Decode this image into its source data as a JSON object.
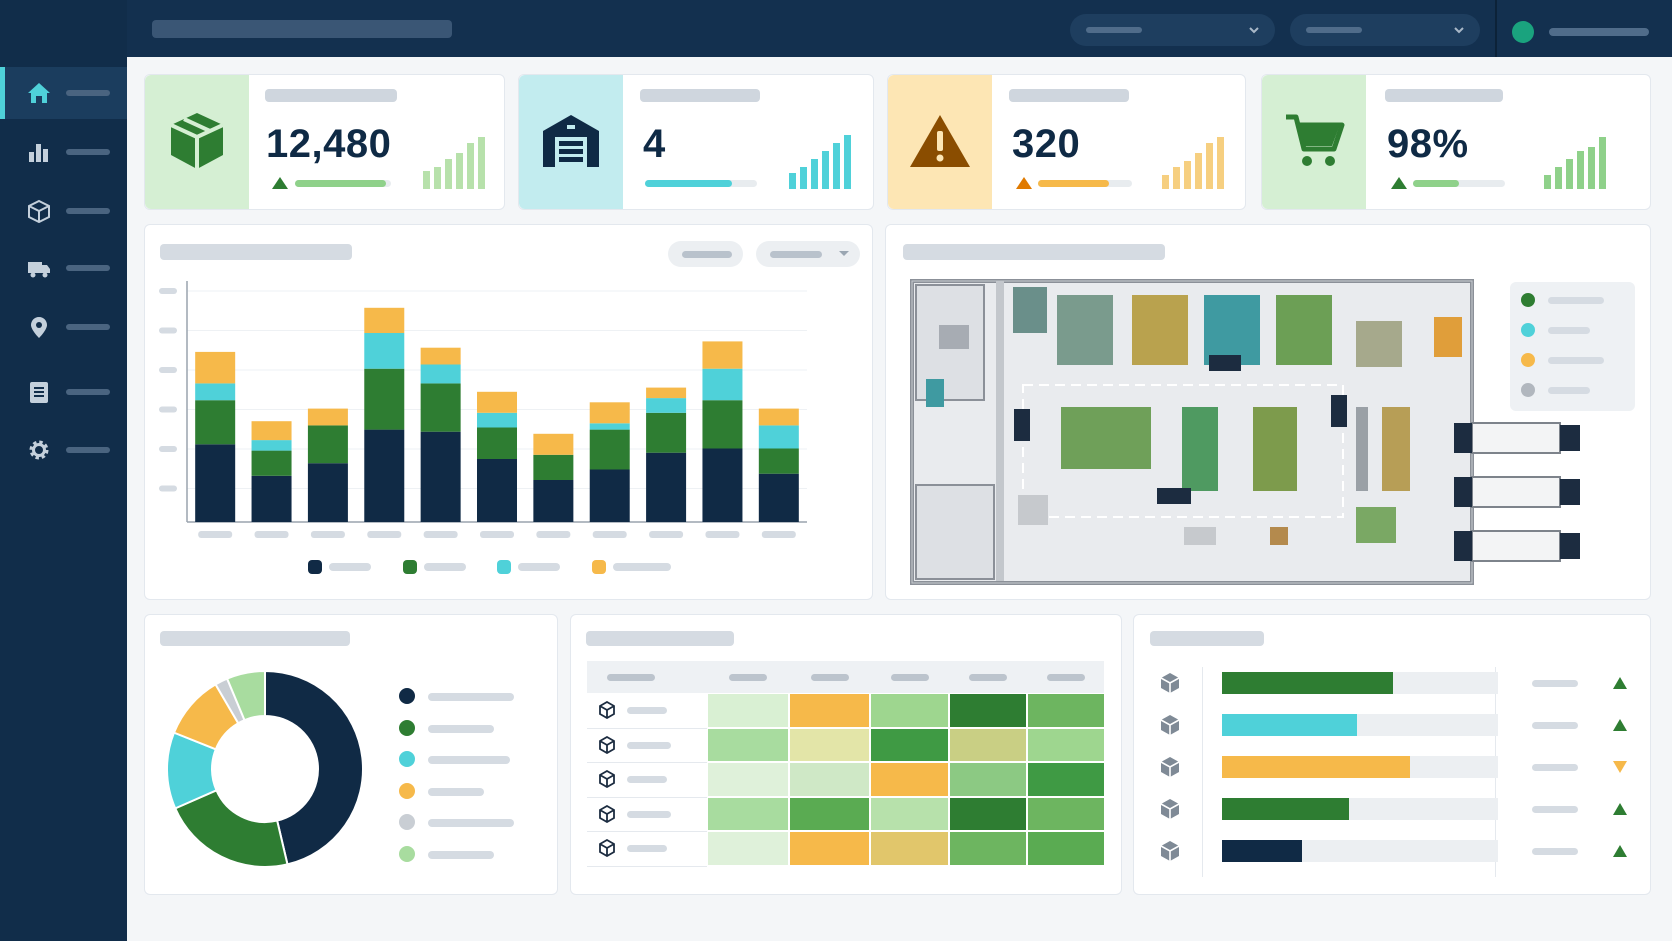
{
  "app": {
    "accent": "#4fd1d9",
    "sidebar_bg": "#112d4a",
    "topbar_bg": "#13304f"
  },
  "sidebar": {
    "items": [
      {
        "icon": "home-icon",
        "active": true
      },
      {
        "icon": "bar-chart-icon",
        "active": false
      },
      {
        "icon": "box-icon",
        "active": false
      },
      {
        "icon": "truck-icon",
        "active": false
      },
      {
        "icon": "location-pin-icon",
        "active": false
      },
      {
        "icon": "document-icon",
        "active": false
      },
      {
        "icon": "gear-icon",
        "active": false
      }
    ]
  },
  "kpis": [
    {
      "icon": "package-icon",
      "value": "12,480",
      "trend": "up",
      "progress": 0.95,
      "color": "#2e7d32",
      "bg": "#d5efd3",
      "bar_color": "#8fd18a"
    },
    {
      "icon": "warehouse-icon",
      "value": "4",
      "trend": "none",
      "progress": 0.78,
      "color": "#0f2a45",
      "bg": "#c2ecef",
      "bar_color": "#4fd1d9"
    },
    {
      "icon": "warning-icon",
      "value": "320",
      "trend": "up",
      "progress": 0.75,
      "color": "#8a4d00",
      "bg": "#fde6b4",
      "bar_color": "#f6b94a"
    },
    {
      "icon": "cart-icon",
      "value": "98%",
      "trend": "up",
      "progress": 0.5,
      "color": "#2e7d32",
      "bg": "#d5efd3",
      "bar_color": "#8fd18a"
    }
  ],
  "stacked_chart": {
    "colors": [
      "#102a45",
      "#2e7d32",
      "#4fd1d9",
      "#f6b94a"
    ]
  },
  "chart_data": {
    "type": "bar",
    "stacked": true,
    "categories": [
      "",
      "",
      "",
      "",
      "",
      "",
      "",
      "",
      "",
      "",
      ""
    ],
    "series": [
      {
        "values": [
          37,
          22,
          28,
          44,
          43,
          30,
          20,
          25,
          33,
          35,
          23
        ]
      },
      {
        "values": [
          21,
          12,
          18,
          29,
          23,
          15,
          12,
          19,
          19,
          23,
          12
        ]
      },
      {
        "values": [
          8,
          5,
          0,
          17,
          9,
          7,
          0,
          3,
          7,
          15,
          11
        ]
      },
      {
        "values": [
          15,
          9,
          8,
          12,
          8,
          10,
          10,
          10,
          5,
          13,
          8
        ]
      }
    ],
    "ylim": [
      0,
      110
    ],
    "grid": true,
    "legend": "bottom"
  },
  "donut": {
    "segments": [
      {
        "value": 44,
        "color": "#102a45"
      },
      {
        "value": 21,
        "color": "#2e7d32"
      },
      {
        "value": 12,
        "color": "#4fd1d9"
      },
      {
        "value": 10,
        "color": "#f6b94a"
      },
      {
        "value": 2,
        "color": "#c9ced4"
      },
      {
        "value": 6,
        "color": "#a8dc9f"
      }
    ]
  },
  "heatmap": {
    "rows": [
      [
        "#d9f0d3",
        "#f6b94a",
        "#9ed68f",
        "#2e7d32",
        "#6db560"
      ],
      [
        "#a8dc9f",
        "#e3e5a8",
        "#3f9a44",
        "#c9cf84",
        "#9ed68f"
      ],
      [
        "#dff1da",
        "#cfe8c6",
        "#f6b94a",
        "#8cc983",
        "#3f9a44"
      ],
      [
        "#a8dc9f",
        "#5aab52",
        "#b7e1ab",
        "#2e7d32",
        "#6db560"
      ],
      [
        "#dff1da",
        "#f6b94a",
        "#e1c66b",
        "#6db560",
        "#5aab52"
      ]
    ]
  },
  "hbars": {
    "rows": [
      {
        "fraction": 0.62,
        "color": "#2e7d32",
        "trend": "up"
      },
      {
        "fraction": 0.49,
        "color": "#4fd1d9",
        "trend": "up"
      },
      {
        "fraction": 0.68,
        "color": "#f6b94a",
        "trend": "down"
      },
      {
        "fraction": 0.46,
        "color": "#2e7d32",
        "trend": "up"
      },
      {
        "fraction": 0.29,
        "color": "#102a45",
        "trend": "up"
      }
    ]
  }
}
